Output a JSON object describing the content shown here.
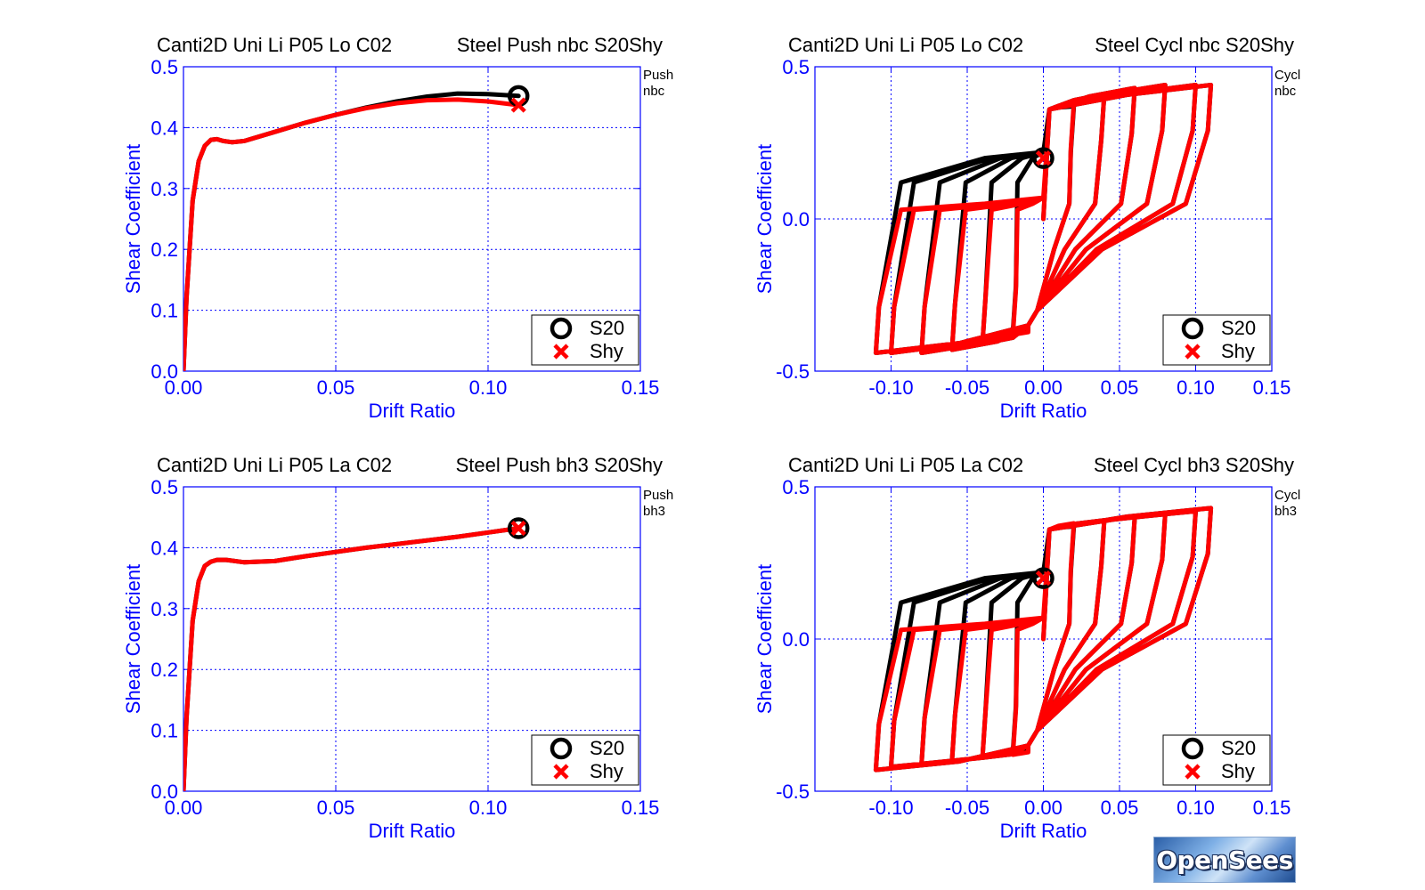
{
  "colors": {
    "axis": "#0000ff",
    "grid": "#0000ff",
    "s20": "#000000",
    "shy": "#ff0000",
    "text": "#000000"
  },
  "logo": {
    "text": "OpenSees"
  },
  "chart_data": [
    {
      "type": "line",
      "title_left": "Canti2D Uni Li P05 Lo C02",
      "title_right": "Steel Push nbc S20Shy",
      "corner_label": [
        "Push",
        "nbc"
      ],
      "xlabel": "Drift Ratio",
      "ylabel": "Shear Coefficient",
      "xlim": [
        0,
        0.15
      ],
      "ylim": [
        0,
        0.5
      ],
      "xticks": [
        "0.00",
        "0.05",
        "0.10",
        "0.15"
      ],
      "yticks": [
        "0.0",
        "0.1",
        "0.2",
        "0.3",
        "0.4",
        "0.5"
      ],
      "grid": true,
      "legend": {
        "position": "bottom-right",
        "entries": [
          "S20",
          "Shy"
        ]
      },
      "series": [
        {
          "name": "S20",
          "marker": "circle",
          "x": [
            0,
            0.001,
            0.003,
            0.005,
            0.007,
            0.009,
            0.011,
            0.013,
            0.016,
            0.02,
            0.03,
            0.04,
            0.05,
            0.06,
            0.07,
            0.08,
            0.09,
            0.1,
            0.11
          ],
          "y": [
            0,
            0.12,
            0.28,
            0.345,
            0.37,
            0.38,
            0.381,
            0.378,
            0.376,
            0.378,
            0.393,
            0.408,
            0.421,
            0.433,
            0.443,
            0.451,
            0.456,
            0.455,
            0.452
          ]
        },
        {
          "name": "Shy",
          "marker": "x",
          "x": [
            0,
            0.001,
            0.003,
            0.005,
            0.007,
            0.009,
            0.011,
            0.013,
            0.016,
            0.02,
            0.03,
            0.04,
            0.05,
            0.06,
            0.07,
            0.08,
            0.09,
            0.1,
            0.11
          ],
          "y": [
            0,
            0.12,
            0.28,
            0.345,
            0.37,
            0.38,
            0.381,
            0.378,
            0.376,
            0.378,
            0.393,
            0.408,
            0.421,
            0.432,
            0.44,
            0.445,
            0.446,
            0.443,
            0.437
          ]
        }
      ]
    },
    {
      "type": "line",
      "title_left": "Canti2D Uni Li P05 Lo C02",
      "title_right": "Steel Cycl nbc S20Shy",
      "corner_label": [
        "Cycl",
        "nbc"
      ],
      "xlabel": "Drift Ratio",
      "ylabel": "Shear Coefficient",
      "xlim": [
        -0.15,
        0.15
      ],
      "ylim": [
        -0.5,
        0.5
      ],
      "xticks": [
        "-0.10",
        "-0.05",
        "0.00",
        "0.05",
        "0.10",
        "0.15"
      ],
      "yticks": [
        "-0.5",
        "0.0",
        "0.5"
      ],
      "grid": true,
      "legend": {
        "position": "bottom-right",
        "entries": [
          "S20",
          "Shy"
        ]
      },
      "series": [
        {
          "name": "S20",
          "marker": "circle",
          "amplitudes": [
            0.02,
            0.04,
            0.06,
            0.08,
            0.1,
            0.11
          ],
          "peak_shear": [
            0.37,
            0.41,
            0.43,
            0.44,
            0.44,
            0.44
          ],
          "reload_shear": 0.2,
          "marker_point": [
            0,
            0.2
          ]
        },
        {
          "name": "Shy",
          "marker": "x",
          "amplitudes": [
            0.02,
            0.04,
            0.06,
            0.08,
            0.1,
            0.11
          ],
          "peak_shear": [
            0.38,
            0.41,
            0.43,
            0.44,
            0.44,
            0.44
          ],
          "reload_shear": 0.05,
          "marker_point": [
            0,
            0.2
          ]
        }
      ]
    },
    {
      "type": "line",
      "title_left": "Canti2D Uni Li P05 La C02",
      "title_right": "Steel Push bh3 S20Shy",
      "corner_label": [
        "Push",
        "bh3"
      ],
      "xlabel": "Drift Ratio",
      "ylabel": "Shear Coefficient",
      "xlim": [
        0,
        0.15
      ],
      "ylim": [
        0,
        0.5
      ],
      "xticks": [
        "0.00",
        "0.05",
        "0.10",
        "0.15"
      ],
      "yticks": [
        "0.0",
        "0.1",
        "0.2",
        "0.3",
        "0.4",
        "0.5"
      ],
      "grid": true,
      "legend": {
        "position": "bottom-right",
        "entries": [
          "S20",
          "Shy"
        ]
      },
      "series": [
        {
          "name": "S20",
          "marker": "circle",
          "x": [
            0,
            0.001,
            0.003,
            0.005,
            0.007,
            0.009,
            0.011,
            0.014,
            0.02,
            0.03,
            0.04,
            0.05,
            0.06,
            0.07,
            0.08,
            0.09,
            0.1,
            0.11
          ],
          "y": [
            0,
            0.12,
            0.28,
            0.345,
            0.37,
            0.377,
            0.38,
            0.38,
            0.376,
            0.378,
            0.386,
            0.393,
            0.4,
            0.406,
            0.412,
            0.418,
            0.425,
            0.432
          ]
        },
        {
          "name": "Shy",
          "marker": "x",
          "x": [
            0,
            0.001,
            0.003,
            0.005,
            0.007,
            0.009,
            0.011,
            0.014,
            0.02,
            0.03,
            0.04,
            0.05,
            0.06,
            0.07,
            0.08,
            0.09,
            0.1,
            0.11
          ],
          "y": [
            0,
            0.12,
            0.28,
            0.345,
            0.37,
            0.377,
            0.38,
            0.38,
            0.376,
            0.378,
            0.386,
            0.393,
            0.4,
            0.406,
            0.412,
            0.418,
            0.425,
            0.432
          ]
        }
      ]
    },
    {
      "type": "line",
      "title_left": "Canti2D Uni Li P05 La C02",
      "title_right": "Steel Cycl bh3 S20Shy",
      "corner_label": [
        "Cycl",
        "bh3"
      ],
      "xlabel": "Drift Ratio",
      "ylabel": "Shear Coefficient",
      "xlim": [
        -0.15,
        0.15
      ],
      "ylim": [
        -0.5,
        0.5
      ],
      "xticks": [
        "-0.10",
        "-0.05",
        "0.00",
        "0.05",
        "0.10",
        "0.15"
      ],
      "yticks": [
        "-0.5",
        "0.0",
        "0.5"
      ],
      "grid": true,
      "legend": {
        "position": "bottom-right",
        "entries": [
          "S20",
          "Shy"
        ]
      },
      "series": [
        {
          "name": "S20",
          "marker": "circle",
          "amplitudes": [
            0.02,
            0.04,
            0.06,
            0.08,
            0.1,
            0.11
          ],
          "peak_shear": [
            0.37,
            0.39,
            0.4,
            0.41,
            0.42,
            0.43
          ],
          "reload_shear": 0.2,
          "marker_point": [
            0,
            0.2
          ]
        },
        {
          "name": "Shy",
          "marker": "x",
          "amplitudes": [
            0.02,
            0.04,
            0.06,
            0.08,
            0.1,
            0.11
          ],
          "peak_shear": [
            0.38,
            0.39,
            0.4,
            0.41,
            0.42,
            0.43
          ],
          "reload_shear": 0.05,
          "marker_point": [
            0,
            0.2
          ]
        }
      ]
    }
  ]
}
